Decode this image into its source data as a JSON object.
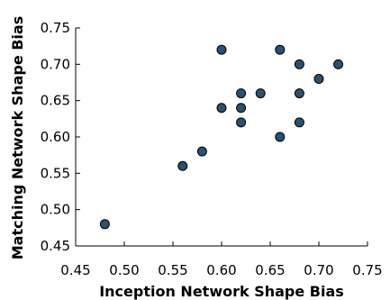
{
  "chart_data": {
    "type": "scatter",
    "title": "",
    "xlabel": "Inception Network Shape Bias",
    "ylabel": "Matching Network Shape Bias",
    "xlim": [
      0.45,
      0.75
    ],
    "ylim": [
      0.45,
      0.75
    ],
    "xticks": [
      "0.45",
      "0.50",
      "0.55",
      "0.60",
      "0.65",
      "0.70",
      "0.75"
    ],
    "yticks": [
      "0.45",
      "0.50",
      "0.55",
      "0.60",
      "0.65",
      "0.70",
      "0.75"
    ],
    "grid": false,
    "marker_color": "#2b5070",
    "points": [
      {
        "x": 0.48,
        "y": 0.48
      },
      {
        "x": 0.56,
        "y": 0.56
      },
      {
        "x": 0.58,
        "y": 0.58
      },
      {
        "x": 0.6,
        "y": 0.72
      },
      {
        "x": 0.6,
        "y": 0.64
      },
      {
        "x": 0.62,
        "y": 0.66
      },
      {
        "x": 0.62,
        "y": 0.64
      },
      {
        "x": 0.62,
        "y": 0.62
      },
      {
        "x": 0.64,
        "y": 0.66
      },
      {
        "x": 0.66,
        "y": 0.72
      },
      {
        "x": 0.66,
        "y": 0.6
      },
      {
        "x": 0.68,
        "y": 0.7
      },
      {
        "x": 0.68,
        "y": 0.66
      },
      {
        "x": 0.68,
        "y": 0.62
      },
      {
        "x": 0.7,
        "y": 0.68
      },
      {
        "x": 0.72,
        "y": 0.7
      }
    ]
  }
}
